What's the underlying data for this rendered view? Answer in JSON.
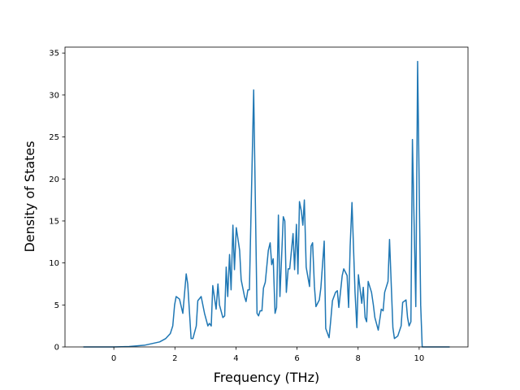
{
  "chart_data": {
    "type": "line",
    "xlabel": "Frequency (THz)",
    "ylabel": "Density of States",
    "color": "#1f77b4",
    "xlim": [
      -1.6,
      11.6
    ],
    "ylim": [
      0,
      35.7
    ],
    "xticks": [
      0,
      2,
      4,
      6,
      8,
      10
    ],
    "yticks": [
      0,
      5,
      10,
      15,
      20,
      25,
      30,
      35
    ],
    "x": [
      -1,
      0,
      0.5,
      1,
      1.5,
      1.7,
      1.85,
      1.93,
      1.99,
      2.04,
      2.15,
      2.26,
      2.37,
      2.42,
      2.53,
      2.59,
      2.7,
      2.75,
      2.86,
      2.97,
      3.08,
      3.13,
      3.19,
      3.24,
      3.35,
      3.41,
      3.46,
      3.57,
      3.63,
      3.68,
      3.73,
      3.79,
      3.84,
      3.9,
      3.95,
      4.01,
      4.12,
      4.17,
      4.28,
      4.33,
      4.39,
      4.44,
      4.58,
      4.69,
      4.74,
      4.79,
      4.85,
      4.9,
      4.96,
      5.06,
      5.12,
      5.17,
      5.22,
      5.28,
      5.33,
      5.39,
      5.44,
      5.55,
      5.6,
      5.65,
      5.71,
      5.76,
      5.87,
      5.92,
      5.98,
      6.03,
      6.08,
      6.14,
      6.19,
      6.24,
      6.3,
      6.41,
      6.46,
      6.51,
      6.57,
      6.62,
      6.73,
      6.78,
      6.89,
      6.94,
      7.05,
      7.1,
      7.16,
      7.26,
      7.32,
      7.37,
      7.48,
      7.53,
      7.64,
      7.69,
      7.74,
      7.8,
      7.9,
      7.96,
      8.01,
      8.12,
      8.17,
      8.23,
      8.28,
      8.33,
      8.44,
      8.5,
      8.55,
      8.66,
      8.76,
      8.82,
      8.87,
      8.98,
      9.03,
      9.14,
      9.19,
      9.3,
      9.41,
      9.46,
      9.57,
      9.62,
      9.67,
      9.73,
      9.78,
      9.89,
      9.95,
      10.05,
      10.1,
      11
    ],
    "values": [
      0,
      0,
      0.05,
      0.2,
      0.6,
      1.0,
      1.6,
      2.5,
      5,
      6,
      5.7,
      4,
      8.7,
      7.5,
      1,
      1,
      2.5,
      5.5,
      6,
      4,
      2.5,
      2.8,
      2.5,
      7.3,
      4.5,
      7.5,
      5,
      3.5,
      3.7,
      9.5,
      6,
      11,
      6.8,
      14.5,
      9.2,
      14.2,
      11.5,
      8,
      6,
      5.4,
      6.8,
      6.8,
      30.6,
      4,
      3.7,
      4.3,
      4.3,
      7,
      7.7,
      11.5,
      12.4,
      9.8,
      10.5,
      4,
      4.7,
      15.7,
      6,
      15.5,
      15,
      6.5,
      9.3,
      9.3,
      13.5,
      9.2,
      14.6,
      8.7,
      17.3,
      16.2,
      14.5,
      17.5,
      9.5,
      7.2,
      12,
      12.4,
      7.2,
      4.8,
      5.6,
      7,
      12.6,
      2.2,
      1.1,
      3,
      5.5,
      6.5,
      6.7,
      4.7,
      8.5,
      9.3,
      8.5,
      4.7,
      12,
      17.2,
      6.5,
      2.3,
      8.6,
      5.2,
      7.1,
      3.5,
      3,
      7.8,
      6.5,
      5,
      3.5,
      2,
      4.5,
      4.3,
      6.5,
      7.8,
      12.8,
      2.3,
      1,
      1.3,
      2.5,
      5.3,
      5.6,
      3.5,
      2.5,
      3,
      24.7,
      4.8,
      34,
      5,
      0,
      0
    ]
  }
}
